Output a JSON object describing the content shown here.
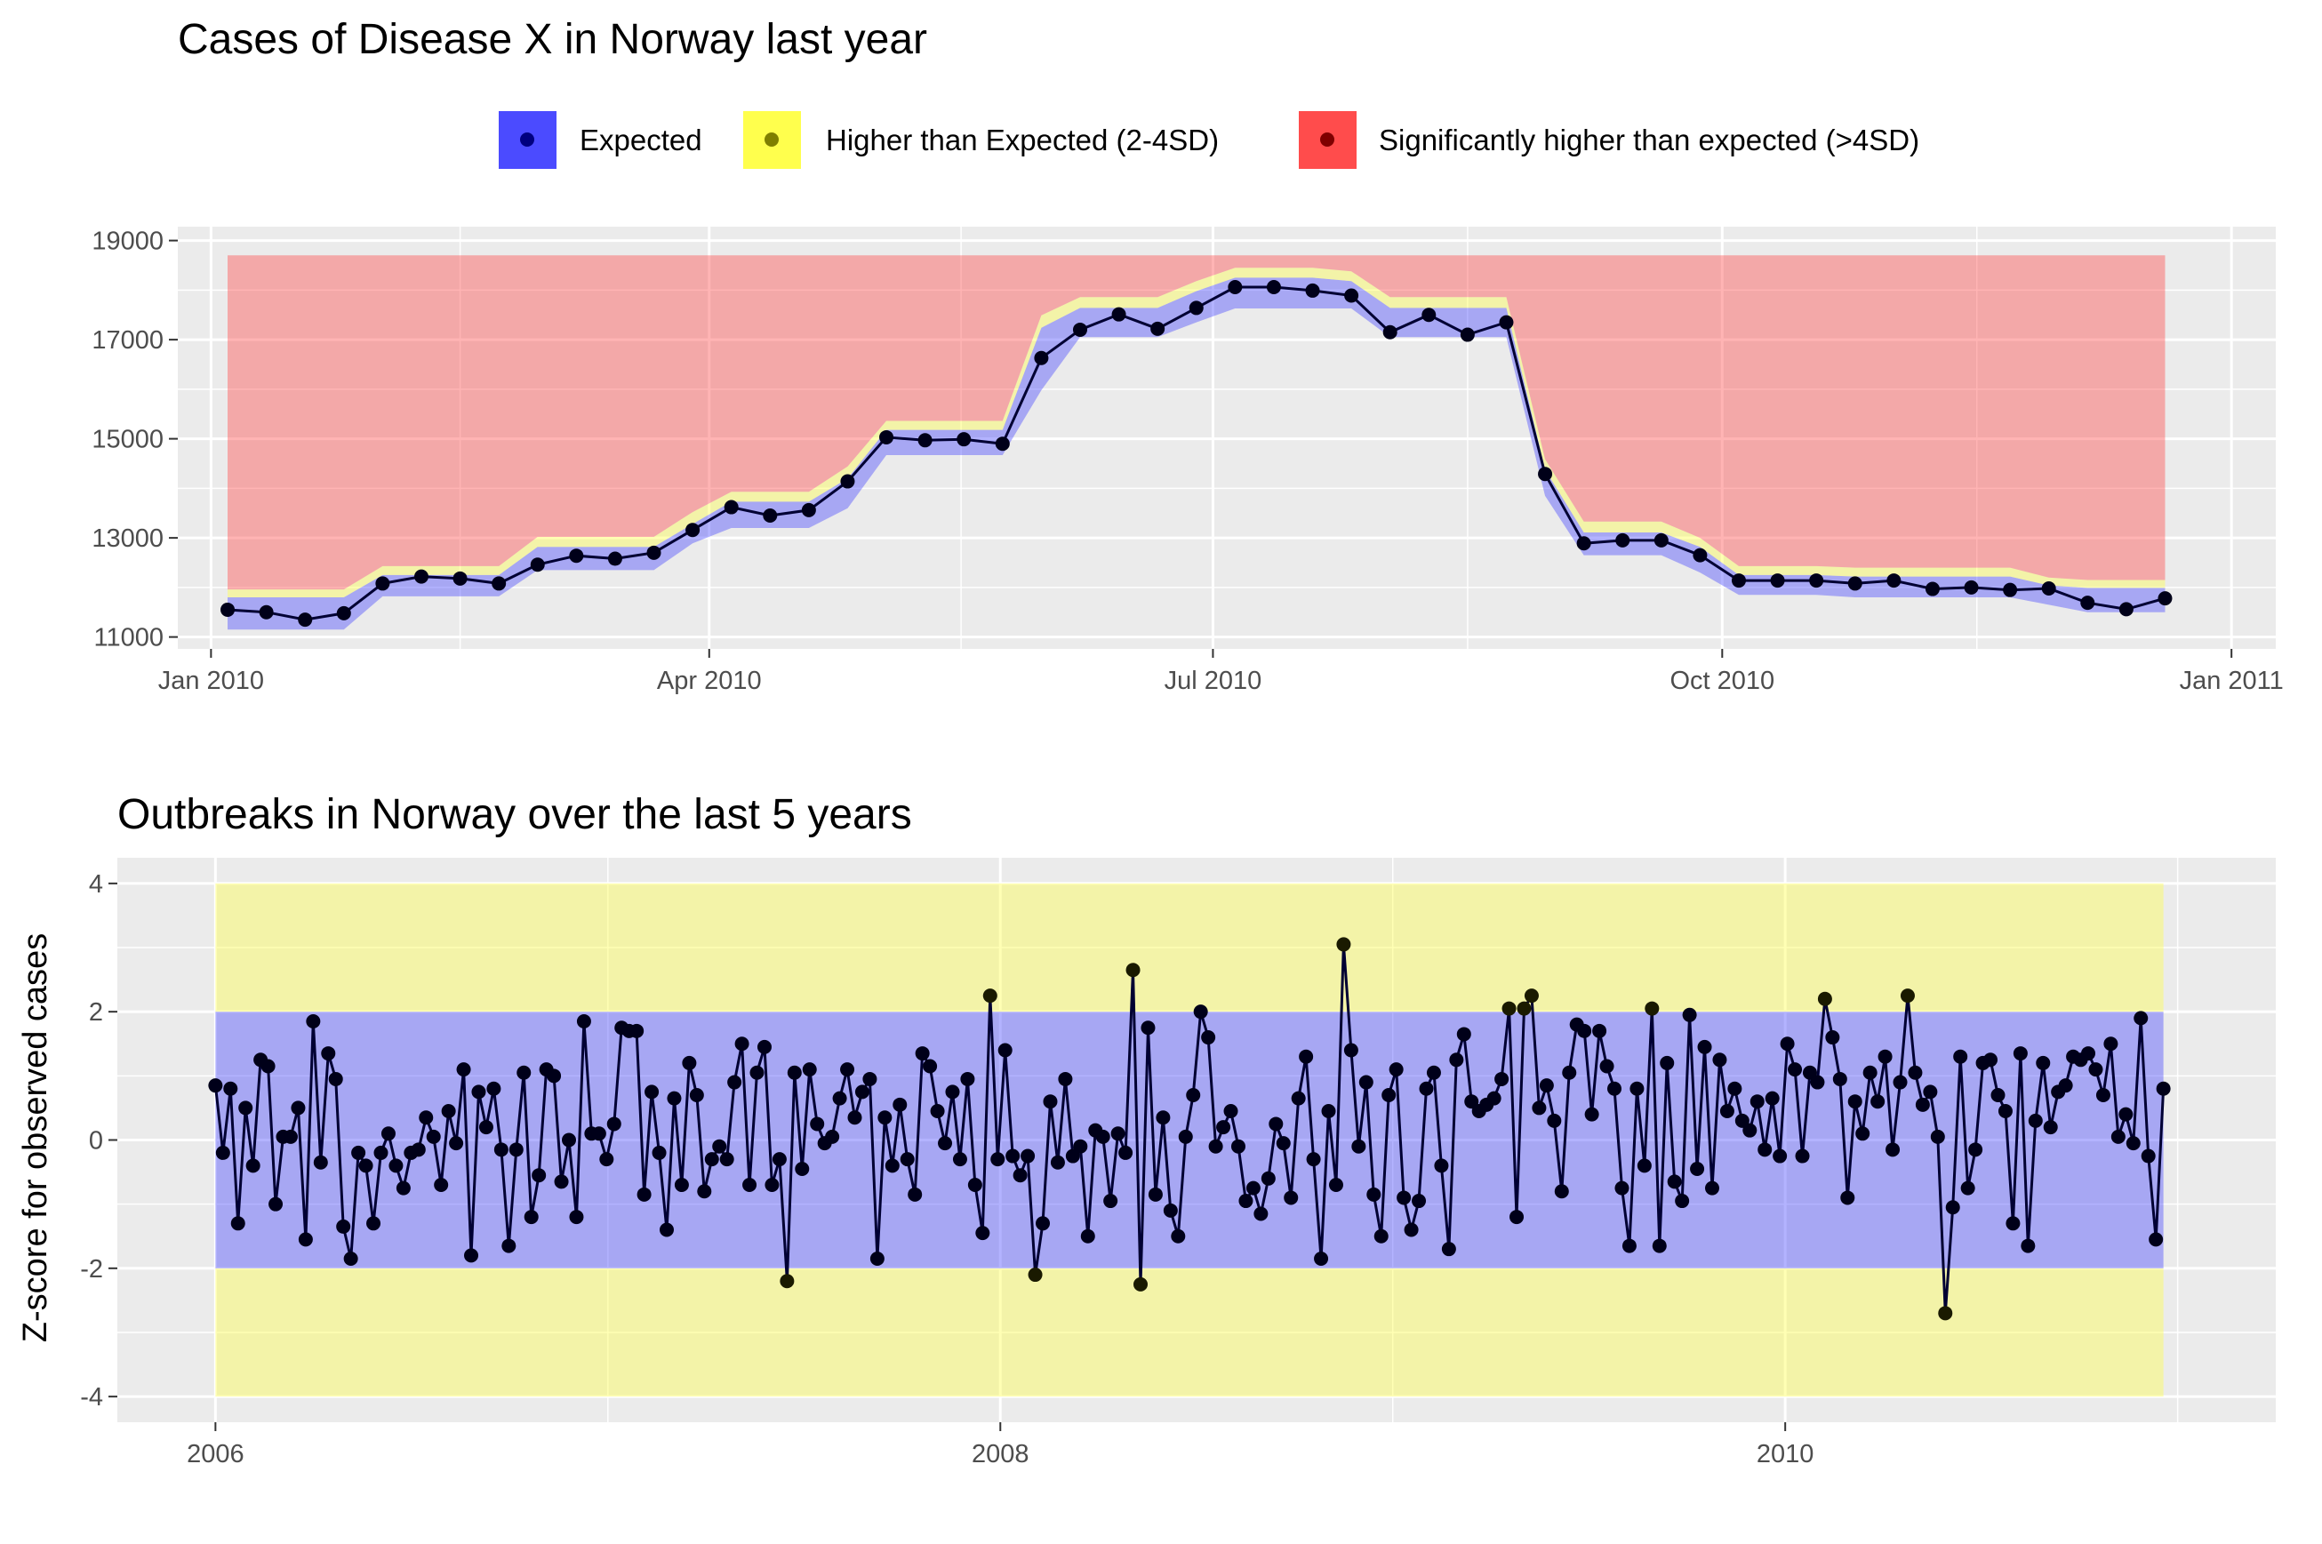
{
  "chart_data": [
    {
      "type": "line",
      "title": "Cases of Disease X in Norway last year",
      "xlabel": "",
      "ylabel": "",
      "x_ticks": [
        "Jan 2010",
        "Apr 2010",
        "Jul 2010",
        "Oct 2010",
        "Jan 2011"
      ],
      "y_ticks": [
        "11000",
        "13000",
        "15000",
        "17000",
        "19000"
      ],
      "xlim": [
        "2009-12-26",
        "2011-01-09"
      ],
      "ylim": [
        10760,
        19280
      ],
      "legend": {
        "position": "top",
        "entries": [
          {
            "label": "Expected",
            "color": "#4b4bff"
          },
          {
            "label": "Higher than Expected (2-4SD)",
            "color": "#ffff4d"
          },
          {
            "label": "Significantly higher than expected (>4SD)",
            "color": "#ff4c4c"
          }
        ]
      },
      "grid": true,
      "zone_top": 18700,
      "series": [
        {
          "x": [
            "2010-01-04",
            "2010-01-11",
            "2010-01-18",
            "2010-01-25",
            "2010-02-01",
            "2010-02-08",
            "2010-02-15",
            "2010-02-22",
            "2010-03-01",
            "2010-03-08",
            "2010-03-15",
            "2010-03-22",
            "2010-03-29",
            "2010-04-05",
            "2010-04-12",
            "2010-04-19",
            "2010-04-26",
            "2010-05-03",
            "2010-05-10",
            "2010-05-17",
            "2010-05-24",
            "2010-05-31",
            "2010-06-07",
            "2010-06-14",
            "2010-06-21",
            "2010-06-28",
            "2010-07-05",
            "2010-07-12",
            "2010-07-19",
            "2010-07-26",
            "2010-08-02",
            "2010-08-09",
            "2010-08-16",
            "2010-08-23",
            "2010-08-30",
            "2010-09-06",
            "2010-09-13",
            "2010-09-20",
            "2010-09-27",
            "2010-10-04",
            "2010-10-11",
            "2010-10-18",
            "2010-10-25",
            "2010-11-01",
            "2010-11-08",
            "2010-11-15",
            "2010-11-22",
            "2010-11-29",
            "2010-12-06",
            "2010-12-13",
            "2010-12-20"
          ],
          "observed": [
            11550,
            11500,
            11350,
            11480,
            12080,
            12220,
            12180,
            12080,
            12460,
            12640,
            12580,
            12700,
            13160,
            13620,
            13450,
            13560,
            14140,
            15030,
            14970,
            14990,
            14900,
            16630,
            17200,
            17510,
            17220,
            17640,
            18060,
            18060,
            17990,
            17890,
            17150,
            17500,
            17100,
            17350,
            14290,
            12890,
            12950,
            12950,
            12650,
            12140,
            12140,
            12140,
            12080,
            12140,
            11970,
            12000,
            11950,
            11980,
            11690,
            11560,
            11780
          ],
          "expected_low": [
            11150,
            11150,
            11150,
            11150,
            11820,
            11820,
            11820,
            11820,
            12350,
            12350,
            12350,
            12350,
            12890,
            13200,
            13200,
            13200,
            13600,
            14670,
            14670,
            14670,
            14670,
            15980,
            17050,
            17050,
            17050,
            17350,
            17630,
            17630,
            17630,
            17630,
            17050,
            17050,
            17050,
            17050,
            13850,
            12650,
            12650,
            12650,
            12300,
            11850,
            11850,
            11850,
            11800,
            11800,
            11800,
            11800,
            11800,
            11650,
            11500,
            11500,
            11500
          ],
          "expected_high": [
            11800,
            11800,
            11800,
            11800,
            12250,
            12250,
            12250,
            12250,
            12820,
            12820,
            12820,
            12820,
            13280,
            13730,
            13730,
            13730,
            14200,
            15180,
            15180,
            15180,
            15180,
            17240,
            17640,
            17640,
            17640,
            17980,
            18250,
            18250,
            18250,
            18180,
            17640,
            17640,
            17640,
            17640,
            14380,
            13110,
            13110,
            13110,
            12820,
            12250,
            12250,
            12250,
            12220,
            12220,
            12220,
            12220,
            12220,
            12040,
            11990,
            11990,
            11990
          ],
          "higher_high": [
            11960,
            11960,
            11960,
            11960,
            12430,
            12430,
            12430,
            12430,
            13020,
            13020,
            13020,
            13020,
            13520,
            13930,
            13930,
            13930,
            14440,
            15360,
            15360,
            15360,
            15360,
            17490,
            17860,
            17860,
            17860,
            18180,
            18450,
            18450,
            18450,
            18380,
            17860,
            17860,
            17860,
            17860,
            14590,
            13330,
            13330,
            13330,
            13000,
            12430,
            12430,
            12430,
            12400,
            12400,
            12400,
            12400,
            12400,
            12200,
            12150,
            12150,
            12150
          ]
        }
      ]
    },
    {
      "type": "line",
      "title": "Outbreaks in Norway over the last 5 years",
      "xlabel": "",
      "ylabel": "Z-score for observed cases",
      "x_ticks": [
        "2006",
        "2008",
        "2010"
      ],
      "y_ticks": [
        "-4",
        "-2",
        "0",
        "2",
        "4"
      ],
      "xlim": [
        2005.75,
        2011.25
      ],
      "ylim": [
        -4.4,
        4.4
      ],
      "grid": true,
      "bands": [
        {
          "from": -4,
          "to": -2,
          "color": "#ffff4d"
        },
        {
          "from": -2,
          "to": 2,
          "color": "#4b4bff"
        },
        {
          "from": 2,
          "to": 4,
          "color": "#ffff4d"
        }
      ],
      "series": [
        {
          "name": "",
          "x_start": 2006.0,
          "x_step_weeks": 1,
          "values": [
            0.85,
            -0.2,
            0.8,
            -1.3,
            0.5,
            -0.4,
            1.25,
            1.15,
            -1.0,
            0.05,
            0.05,
            0.5,
            -1.55,
            1.85,
            -0.35,
            1.35,
            0.95,
            -1.35,
            -1.85,
            -0.2,
            -0.4,
            -1.3,
            -0.2,
            0.1,
            -0.4,
            -0.75,
            -0.2,
            -0.15,
            0.35,
            0.05,
            -0.7,
            0.45,
            -0.05,
            1.1,
            -1.8,
            0.75,
            0.2,
            0.8,
            -0.15,
            -1.65,
            -0.15,
            1.05,
            -1.2,
            -0.55,
            1.1,
            1.0,
            -0.65,
            0.0,
            -1.2,
            1.85,
            0.1,
            0.1,
            -0.3,
            0.25,
            1.75,
            1.7,
            1.7,
            -0.85,
            0.75,
            -0.2,
            -1.4,
            0.65,
            -0.7,
            1.2,
            0.7,
            -0.8,
            -0.3,
            -0.1,
            -0.3,
            0.9,
            1.5,
            -0.7,
            1.05,
            1.45,
            -0.7,
            -0.3,
            -2.2,
            1.05,
            -0.45,
            1.1,
            0.25,
            -0.05,
            0.05,
            0.65,
            1.1,
            0.35,
            0.75,
            0.95,
            -1.85,
            0.35,
            -0.4,
            0.55,
            -0.3,
            -0.85,
            1.35,
            1.15,
            0.45,
            -0.05,
            0.75,
            -0.3,
            0.95,
            -0.7,
            -1.45,
            2.25,
            -0.3,
            1.4,
            -0.25,
            -0.55,
            -0.25,
            -2.1,
            -1.3,
            0.6,
            -0.35,
            0.95,
            -0.25,
            -0.1,
            -1.5,
            0.15,
            0.05,
            -0.95,
            0.1,
            -0.2,
            2.65,
            -2.25,
            1.75,
            -0.85,
            0.35,
            -1.1,
            -1.5,
            0.05,
            0.7,
            2.0,
            1.6,
            -0.1,
            0.2,
            0.45,
            -0.1,
            -0.95,
            -0.75,
            -1.15,
            -0.6,
            0.25,
            -0.05,
            -0.9,
            0.65,
            1.3,
            -0.3,
            -1.85,
            0.45,
            -0.7,
            3.05,
            1.4,
            -0.1,
            0.9,
            -0.85,
            -1.5,
            0.7,
            1.1,
            -0.9,
            -1.4,
            -0.95,
            0.8,
            1.05,
            -0.4,
            -1.7,
            1.25,
            1.65,
            0.6,
            0.45,
            0.55,
            0.65,
            0.95,
            2.05,
            -1.2,
            2.05,
            2.25,
            0.5,
            0.85,
            0.3,
            -0.8,
            1.05,
            1.8,
            1.7,
            0.4,
            1.7,
            1.15,
            0.8,
            -0.75,
            -1.65,
            0.8,
            -0.4,
            2.05,
            -1.65,
            1.2,
            -0.65,
            -0.95,
            1.95,
            -0.45,
            1.45,
            -0.75,
            1.25,
            0.45,
            0.8,
            0.3,
            0.15,
            0.6,
            -0.15,
            0.65,
            -0.25,
            1.5,
            1.1,
            -0.25,
            1.05,
            0.9,
            2.2,
            1.6,
            0.95,
            -0.9,
            0.6,
            0.1,
            1.05,
            0.6,
            1.3,
            -0.15,
            0.9,
            2.25,
            1.05,
            0.55,
            0.75,
            0.05,
            -2.7,
            -1.05,
            1.3,
            -0.75,
            -0.15,
            1.2,
            1.25,
            0.7,
            0.45,
            -1.3,
            1.35,
            -1.65,
            0.3,
            1.2,
            0.2,
            0.75,
            0.85,
            1.3,
            1.25,
            1.35,
            1.1,
            0.7,
            1.5,
            0.05,
            0.4,
            -0.05,
            1.9,
            -0.25,
            -1.55,
            0.8
          ]
        }
      ]
    }
  ]
}
